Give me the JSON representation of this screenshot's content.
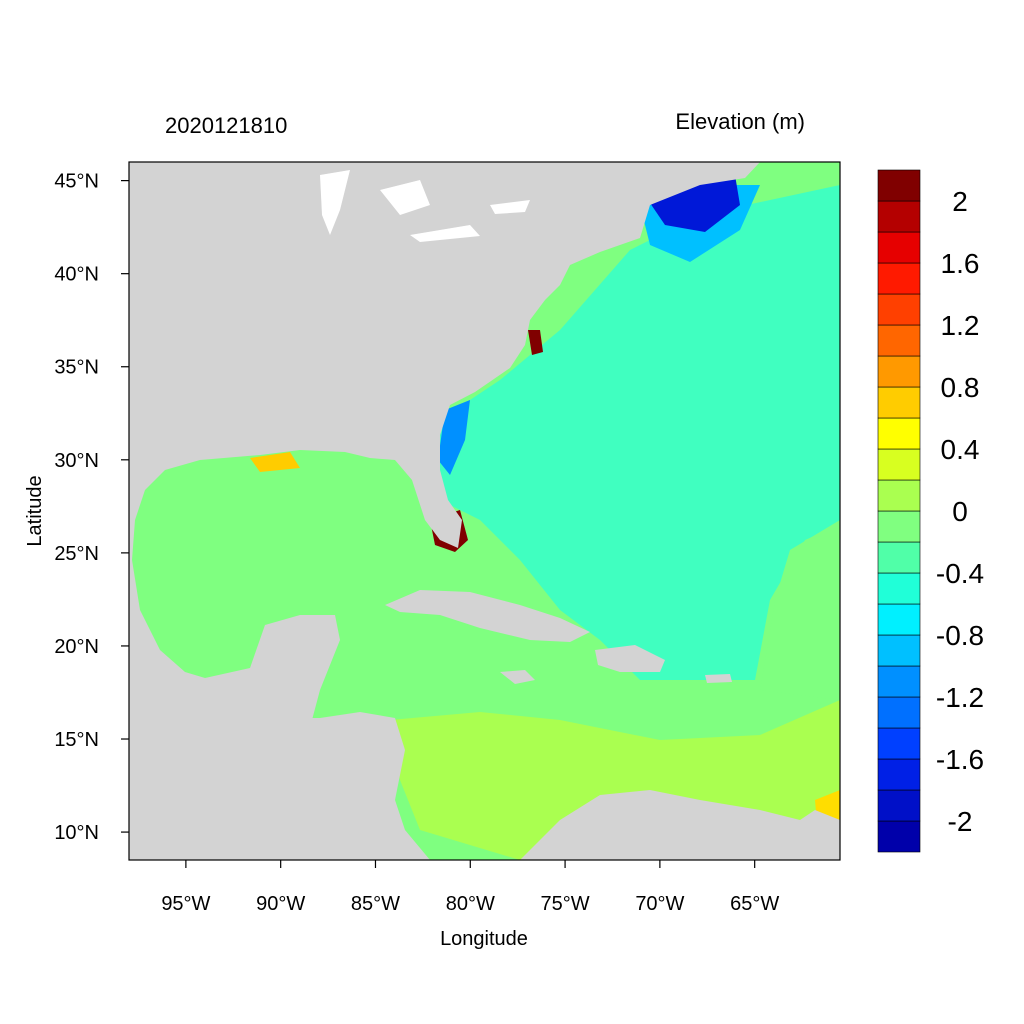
{
  "map": {
    "timestamp": "2020121810",
    "variable_label": "Elevation (m)",
    "x_axis_label": "Longitude",
    "y_axis_label": "Latitude",
    "lon_range": [
      -98,
      -60.5
    ],
    "lat_range": [
      8.5,
      46
    ],
    "x_ticks": [
      {
        "lon": -95,
        "label": "95°W"
      },
      {
        "lon": -90,
        "label": "90°W"
      },
      {
        "lon": -85,
        "label": "85°W"
      },
      {
        "lon": -80,
        "label": "80°W"
      },
      {
        "lon": -75,
        "label": "75°W"
      },
      {
        "lon": -70,
        "label": "70°W"
      },
      {
        "lon": -65,
        "label": "65°W"
      }
    ],
    "y_ticks": [
      {
        "lat": 45,
        "label": "45°N"
      },
      {
        "lat": 40,
        "label": "40°N"
      },
      {
        "lat": 35,
        "label": "35°N"
      },
      {
        "lat": 30,
        "label": "30°N"
      },
      {
        "lat": 25,
        "label": "25°N"
      },
      {
        "lat": 20,
        "label": "20°N"
      },
      {
        "lat": 15,
        "label": "15°N"
      },
      {
        "lat": 10,
        "label": "10°N"
      }
    ],
    "land_color": "#d3d3d3",
    "colorbar": {
      "colors": [
        "#0000aa",
        "#0010c8",
        "#0020e6",
        "#0040ff",
        "#0070ff",
        "#0090ff",
        "#00c0ff",
        "#00f0ff",
        "#20ffd8",
        "#50ffa8",
        "#80ff80",
        "#aaff50",
        "#d8ff20",
        "#ffff00",
        "#ffcc00",
        "#ff9900",
        "#ff6600",
        "#ff4000",
        "#ff1a00",
        "#e60000",
        "#b40000",
        "#800000"
      ],
      "labels": [
        "-2",
        "-1.6",
        "-1.2",
        "-0.8",
        "-0.4",
        "0",
        "0.4",
        "0.8",
        "1.2",
        "1.6",
        "2"
      ]
    },
    "color_key": {
      "deep_negative": "#0018d8",
      "negative": "#0080ff",
      "atlantic": "#40ffc0",
      "near_zero": "#7fff80",
      "slight_positive": "#aaff50",
      "positive": "#ffdd00",
      "high": "#800000"
    }
  }
}
